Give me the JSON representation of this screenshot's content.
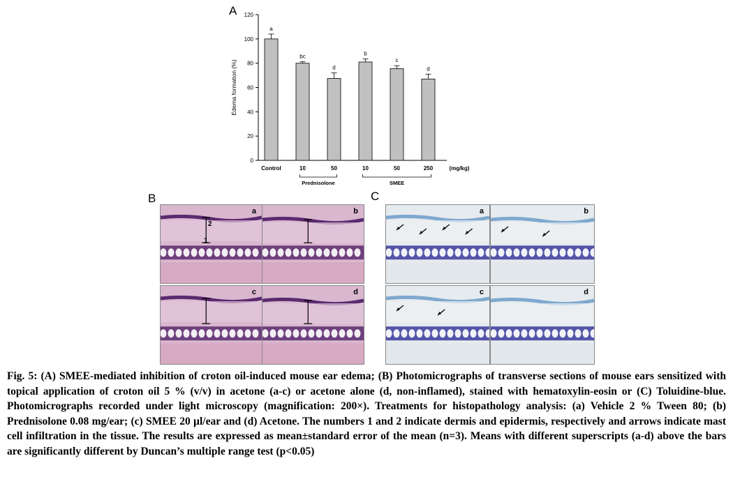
{
  "panels": {
    "a_letter": "A",
    "b_letter": "B",
    "c_letter": "C"
  },
  "chart_data": {
    "type": "bar",
    "ylabel": "Edema formation (%)",
    "ylim": [
      0,
      120
    ],
    "yticks": [
      0,
      20,
      40,
      60,
      80,
      100,
      120
    ],
    "categories": [
      "Control",
      "10",
      "50",
      "10",
      "50",
      "250"
    ],
    "values": [
      100,
      80,
      67.5,
      81,
      75.5,
      67
    ],
    "errors": [
      4,
      1.2,
      4.5,
      2.5,
      2.5,
      4
    ],
    "superscripts": [
      "a",
      "bc",
      "d",
      "b",
      "c",
      "d"
    ],
    "unit_label": "(mg/kg)",
    "groups": [
      {
        "name": "Prednisolone",
        "from": 1,
        "to": 2
      },
      {
        "name": "SMEE",
        "from": 3,
        "to": 5
      }
    ],
    "colors": {
      "bar": "#c0c0c0",
      "edge": "#000000"
    }
  },
  "micrographs": {
    "he": [
      {
        "label": "a",
        "marker1": "1",
        "marker2": "2"
      },
      {
        "label": "b"
      },
      {
        "label": "c"
      },
      {
        "label": "d"
      }
    ],
    "tb": [
      {
        "label": "a"
      },
      {
        "label": "b"
      },
      {
        "label": "c"
      },
      {
        "label": "d"
      }
    ],
    "colors": {
      "he_bg": "#d9b7cf",
      "he_fat": "#f3eef3",
      "he_line": "#5b2a6f",
      "tb_bg": "#e6ebef",
      "tb_dark": "#3b3a9c",
      "tb_fat": "#f1f3f8"
    }
  },
  "caption": {
    "text": "Fig. 5: (A) SMEE-mediated inhibition of croton oil-induced mouse ear edema; (B) Photomicrographs of transverse sections of mouse ears sensitized with topical application of croton oil 5 % (v/v) in acetone (a-c) or acetone alone (d, non-inflamed), stained with hematoxylin-eosin or (C) Toluidine-blue. Photomicrographs recorded under light microscopy (magnification: 200×). Treatments for histopathology analysis: (a) Vehicle 2 % Tween 80; (b) Prednisolone 0.08 mg/ear; (c) SMEE 20 µl/ear and (d) Acetone. The numbers 1 and 2 indicate dermis and epidermis, respectively and arrows indicate mast cell infiltration in the tissue. The results are expressed as mean±standard error of the mean (n=3). Means with different superscripts (a-d) above the bars are significantly different by Duncan’s multiple range test (p<0.05)"
  }
}
